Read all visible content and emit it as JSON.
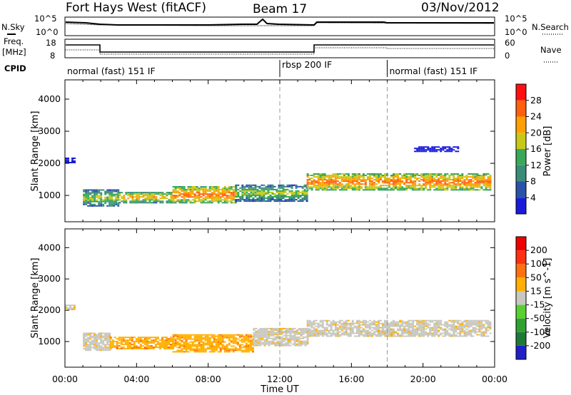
{
  "header": {
    "title": "Fort Hays West (fitACF)",
    "beam": "Beam 17",
    "date": "03/Nov/2012"
  },
  "top_panels": {
    "nsky_label": "N.Sky",
    "nsearch_label": "N.Search",
    "noise_ticks_left": [
      "10^5",
      "10^0"
    ],
    "noise_ticks_right": [
      "10^5",
      "10^0"
    ],
    "freq_label_line1": "Freq.",
    "freq_label_line2": "[MHz]",
    "freq_ticks": [
      "18",
      "8"
    ],
    "nave_label": "Nave",
    "nave_ticks": [
      "60",
      "0"
    ],
    "cpid_label": "CPID",
    "cpid_segments": [
      {
        "label": "normal (fast) 151 IF",
        "start_hour": 0,
        "end_hour": 12
      },
      {
        "label": "rbsp 200 IF",
        "start_hour": 12,
        "end_hour": 18
      },
      {
        "label": "normal (fast) 151 IF",
        "start_hour": 18,
        "end_hour": 24
      }
    ]
  },
  "chart_data": [
    {
      "type": "heatmap",
      "ylabel": "Slant Range [km]",
      "xlabel": "",
      "xlim_hours": [
        0,
        24
      ],
      "ylim_km": [
        180,
        4600
      ],
      "yticks": [
        1000,
        2000,
        3000,
        4000
      ],
      "ytick_labels": [
        "1000",
        "2000",
        "3000",
        "4000"
      ],
      "colorbar": {
        "label": "Power [dB]",
        "tick_labels": [
          "4",
          "8",
          "12",
          "16",
          "20",
          "24",
          "28"
        ],
        "colors": [
          "#1a1adb",
          "#2a52a8",
          "#3a8c78",
          "#38a85a",
          "#c8c818",
          "#ffa000",
          "#ff6010",
          "#ff1010"
        ]
      },
      "dashed_time_hours": [
        12,
        18
      ],
      "echo_regions": [
        {
          "start_hour": 1.0,
          "end_hour": 3.0,
          "range_lo_km": 650,
          "range_hi_km": 1150,
          "level": 4
        },
        {
          "start_hour": 3.0,
          "end_hour": 6.0,
          "range_lo_km": 750,
          "range_hi_km": 1100,
          "level": 5
        },
        {
          "start_hour": 6.0,
          "end_hour": 9.5,
          "range_lo_km": 750,
          "range_hi_km": 1250,
          "level": 6
        },
        {
          "start_hour": 9.5,
          "end_hour": 13.5,
          "range_lo_km": 800,
          "range_hi_km": 1300,
          "level": 4
        },
        {
          "start_hour": 13.5,
          "end_hour": 23.8,
          "range_lo_km": 1150,
          "range_hi_km": 1650,
          "level": 6
        },
        {
          "start_hour": 0.0,
          "end_hour": 0.6,
          "range_lo_km": 2000,
          "range_hi_km": 2150,
          "level": 1
        },
        {
          "start_hour": 19.5,
          "end_hour": 22.0,
          "range_lo_km": 2350,
          "range_hi_km": 2500,
          "level": 0
        }
      ]
    },
    {
      "type": "heatmap",
      "ylabel": "Slant Range [km]",
      "xlabel": "Time UT",
      "xlim_hours": [
        0,
        24
      ],
      "xticks_hours": [
        0,
        4,
        8,
        12,
        16,
        20,
        24
      ],
      "xtick_labels": [
        "00:00",
        "04:00",
        "08:00",
        "12:00",
        "16:00",
        "20:00",
        "00:00"
      ],
      "ylim_km": [
        180,
        4600
      ],
      "yticks": [
        1000,
        2000,
        3000,
        4000
      ],
      "ytick_labels": [
        "1000",
        "2000",
        "3000",
        "4000"
      ],
      "colorbar": {
        "label": "Velocity [m s^-1]",
        "tick_labels": [
          "200",
          "100",
          "50",
          "15",
          "-15",
          "-50",
          "-100",
          "-200"
        ],
        "colors": [
          "#2020c8",
          "#1f7a3a",
          "#30a030",
          "#58d030",
          "#c8c8c0",
          "#ffb000",
          "#ff7010",
          "#ff3010",
          "#ee0000"
        ]
      },
      "dashed_time_hours": [
        12,
        18
      ],
      "echo_regions": [
        {
          "start_hour": 1.0,
          "end_hour": 2.5,
          "range_lo_km": 700,
          "range_hi_km": 1250,
          "level": 4
        },
        {
          "start_hour": 2.5,
          "end_hour": 6.0,
          "range_lo_km": 750,
          "range_hi_km": 1150,
          "level": 5
        },
        {
          "start_hour": 6.0,
          "end_hour": 10.5,
          "range_lo_km": 650,
          "range_hi_km": 1200,
          "level": 5
        },
        {
          "start_hour": 10.5,
          "end_hour": 13.5,
          "range_lo_km": 850,
          "range_hi_km": 1400,
          "level": 4
        },
        {
          "start_hour": 13.5,
          "end_hour": 23.8,
          "range_lo_km": 1150,
          "range_hi_km": 1650,
          "level": 4
        },
        {
          "start_hour": 0.0,
          "end_hour": 0.6,
          "range_lo_km": 2000,
          "range_hi_km": 2150,
          "level": 4
        }
      ]
    }
  ]
}
